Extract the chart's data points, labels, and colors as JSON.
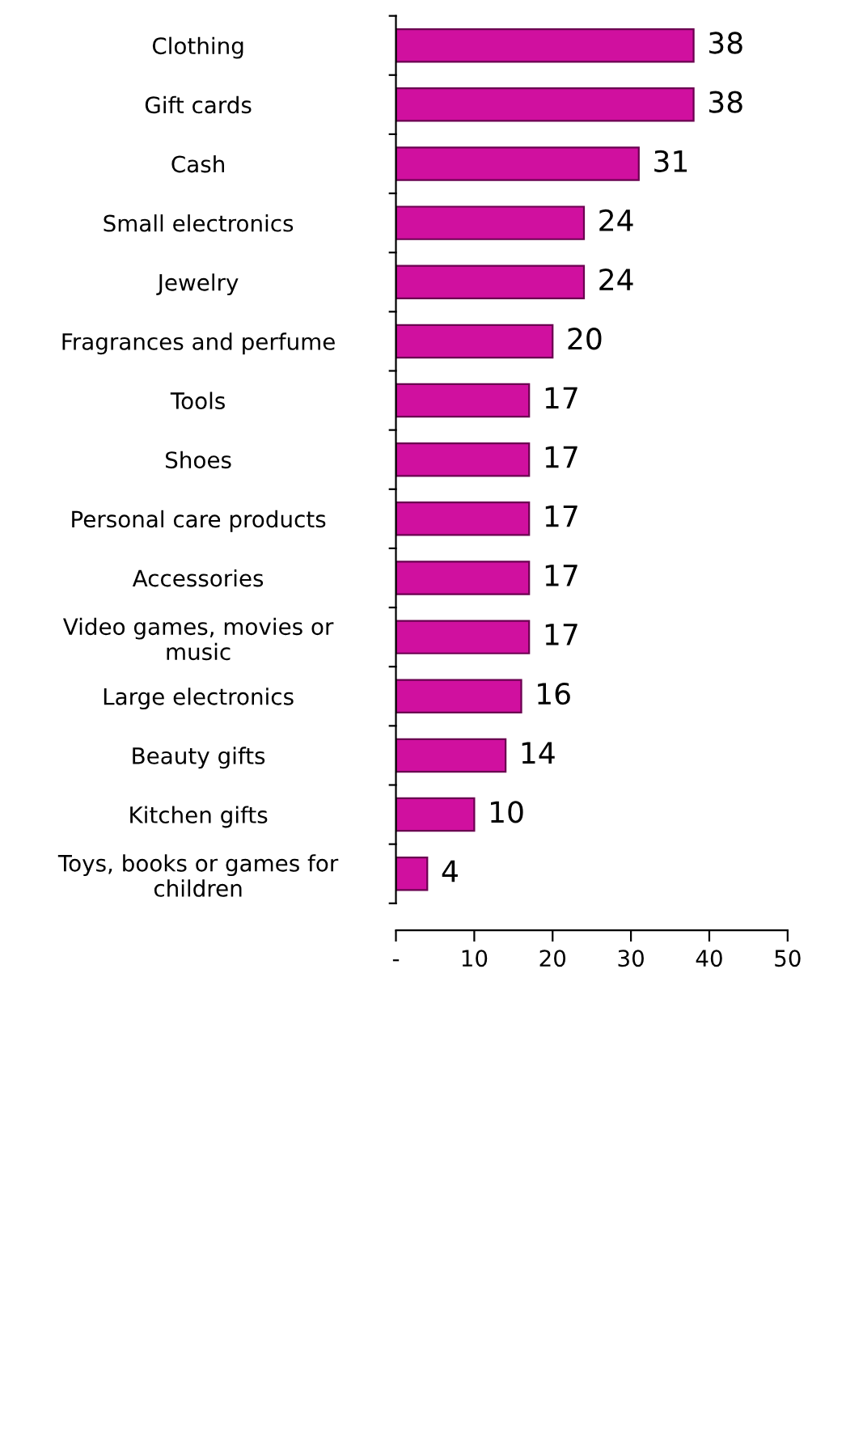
{
  "chart_data": {
    "type": "bar",
    "orientation": "horizontal",
    "categories": [
      "Clothing",
      "Gift cards",
      "Cash",
      "Small electronics",
      "Jewelry",
      "Fragrances and perfume",
      "Tools",
      "Shoes",
      "Personal care products",
      "Accessories",
      "Video games, movies or\nmusic",
      "Large electronics",
      "Beauty gifts",
      "Kitchen gifts",
      "Toys, books or games for\nchildren"
    ],
    "values": [
      38,
      38,
      31,
      24,
      24,
      20,
      17,
      17,
      17,
      17,
      17,
      16,
      14,
      10,
      4
    ],
    "color": "#d0109f",
    "xlim": [
      0,
      50
    ],
    "xticks": [
      {
        "value": 0,
        "label": "-"
      },
      10,
      20,
      30,
      40,
      50
    ],
    "data_labels": true,
    "grid": false
  }
}
